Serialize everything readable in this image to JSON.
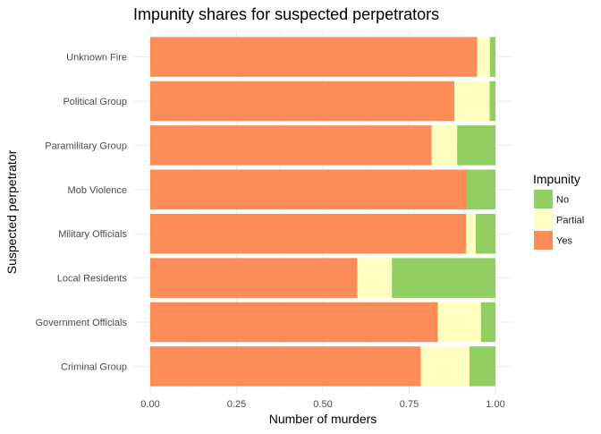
{
  "chart_data": {
    "type": "bar",
    "orientation": "horizontal",
    "stacked": true,
    "title": "Impunity shares for suspected perpetrators",
    "xlabel": "Number of murders",
    "ylabel": "Suspected perpetrator",
    "xlim": [
      0,
      1
    ],
    "x_ticks": [
      "0.00",
      "0.25",
      "0.50",
      "0.75",
      "1.00"
    ],
    "grid": true,
    "legend_position": "right",
    "legend_title": "Impunity",
    "categories": [
      "Unknown Fire",
      "Political Group",
      "Paramilitary Group",
      "Mob Violence",
      "Military Officials",
      "Local Residents",
      "Government Officials",
      "Criminal Group"
    ],
    "series": [
      {
        "name": "Yes",
        "color": "#fc8d59",
        "values": [
          0.947,
          0.881,
          0.815,
          0.917,
          0.915,
          0.6,
          0.833,
          0.784
        ]
      },
      {
        "name": "Partial",
        "color": "#ffffbf",
        "values": [
          0.037,
          0.102,
          0.074,
          0.0,
          0.028,
          0.1,
          0.125,
          0.141
        ]
      },
      {
        "name": "No",
        "color": "#91cf60",
        "values": [
          0.016,
          0.017,
          0.111,
          0.083,
          0.057,
          0.3,
          0.042,
          0.075
        ]
      }
    ],
    "legend_order": [
      "No",
      "Partial",
      "Yes"
    ]
  }
}
